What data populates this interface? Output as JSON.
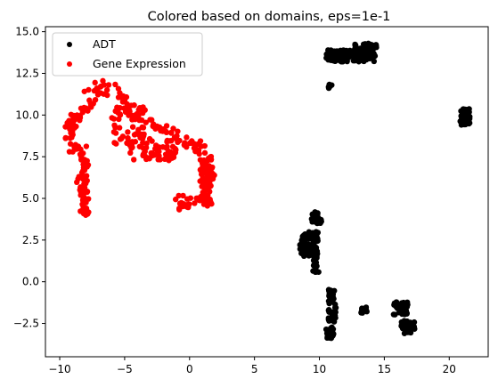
{
  "chart_data": {
    "type": "scatter",
    "title": "Colored based on domains, eps=1e-1",
    "xlabel": "",
    "ylabel": "",
    "xlim": [
      -11.1,
      23.0
    ],
    "ylim": [
      -4.5,
      15.3
    ],
    "xticks": [
      -10,
      -5,
      0,
      5,
      10,
      15,
      20
    ],
    "yticks": [
      -2.5,
      0.0,
      2.5,
      5.0,
      7.5,
      10.0,
      12.5,
      15.0
    ],
    "xtick_labels": [
      "−10",
      "−5",
      "0",
      "5",
      "10",
      "15",
      "20"
    ],
    "ytick_labels": [
      "−2.5",
      "0.0",
      "2.5",
      "5.0",
      "7.5",
      "10.0",
      "12.5",
      "15.0"
    ],
    "grid": false,
    "legend_position": "top-left",
    "series": [
      {
        "name": "ADT",
        "color": "#000000",
        "clusters": [
          {
            "kind": "cloud",
            "x": [
              10.5,
              14.3
            ],
            "y": [
              13.2,
              13.9
            ],
            "n": 160
          },
          {
            "kind": "cloud",
            "x": [
              12.7,
              14.4
            ],
            "y": [
              13.9,
              14.3
            ],
            "n": 30
          },
          {
            "kind": "cloud",
            "x": [
              10.7,
              11.0
            ],
            "y": [
              11.6,
              11.9
            ],
            "n": 8
          },
          {
            "kind": "cloud",
            "x": [
              20.8,
              21.6
            ],
            "y": [
              9.4,
              10.4
            ],
            "n": 45
          },
          {
            "kind": "cloud",
            "x": [
              9.4,
              10.2
            ],
            "y": [
              3.5,
              4.2
            ],
            "n": 20
          },
          {
            "kind": "cloud",
            "x": [
              8.5,
              9.9
            ],
            "y": [
              1.5,
              3.0
            ],
            "n": 90
          },
          {
            "kind": "cloud",
            "x": [
              9.5,
              10.0
            ],
            "y": [
              0.4,
              1.5
            ],
            "n": 15
          },
          {
            "kind": "cloud",
            "x": [
              10.7,
              11.3
            ],
            "y": [
              -2.4,
              -0.3
            ],
            "n": 40
          },
          {
            "kind": "cloud",
            "x": [
              10.5,
              11.1
            ],
            "y": [
              -3.4,
              -2.7
            ],
            "n": 25
          },
          {
            "kind": "cloud",
            "x": [
              13.2,
              13.8
            ],
            "y": [
              -1.9,
              -1.5
            ],
            "n": 10
          },
          {
            "kind": "cloud",
            "x": [
              15.7,
              16.8
            ],
            "y": [
              -2.0,
              -1.2
            ],
            "n": 35
          },
          {
            "kind": "cloud",
            "x": [
              16.3,
              17.4
            ],
            "y": [
              -3.1,
              -2.3
            ],
            "n": 35
          }
        ]
      },
      {
        "name": "Gene Expression",
        "color": "#ff0000",
        "clusters": [
          {
            "kind": "path",
            "points": [
              [
                -8.0,
                3.8
              ],
              [
                -8.2,
                5.0
              ],
              [
                -8.3,
                6.0
              ],
              [
                -8.0,
                6.8
              ],
              [
                -8.5,
                7.8
              ],
              [
                -9.3,
                8.5
              ],
              [
                -9.3,
                9.4
              ],
              [
                -8.5,
                10.0
              ],
              [
                -7.8,
                10.8
              ],
              [
                -7.0,
                11.5
              ],
              [
                -6.0,
                11.6
              ],
              [
                -5.2,
                11.2
              ],
              [
                -4.5,
                10.5
              ],
              [
                -3.8,
                10.0
              ],
              [
                -3.0,
                9.5
              ],
              [
                -2.0,
                9.3
              ],
              [
                -1.0,
                8.8
              ],
              [
                0.0,
                8.3
              ],
              [
                1.0,
                7.8
              ],
              [
                1.5,
                7.2
              ],
              [
                1.5,
                6.0
              ],
              [
                1.2,
                5.0
              ],
              [
                0.3,
                4.6
              ],
              [
                -1.0,
                4.8
              ],
              [
                -1.2,
                5.3
              ]
            ],
            "n": 260,
            "spread": 0.45
          },
          {
            "kind": "cloud",
            "x": [
              -6.0,
              -3.5
            ],
            "y": [
              8.0,
              10.5
            ],
            "n": 60
          },
          {
            "kind": "cloud",
            "x": [
              -4.8,
              -1.0
            ],
            "y": [
              7.2,
              8.6
            ],
            "n": 55
          },
          {
            "kind": "cloud",
            "x": [
              0.8,
              1.7
            ],
            "y": [
              4.5,
              7.6
            ],
            "n": 50
          }
        ]
      }
    ]
  }
}
